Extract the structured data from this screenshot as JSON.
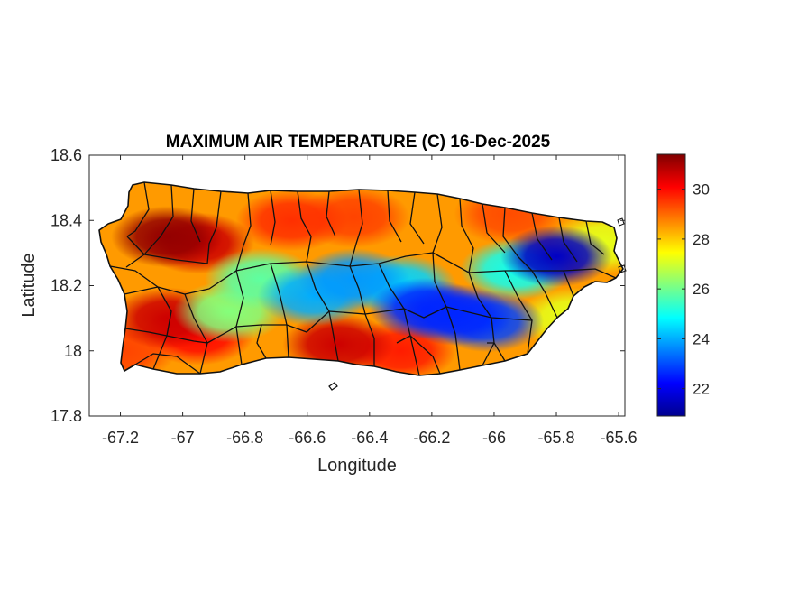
{
  "chart_data": {
    "type": "heatmap",
    "title": "MAXIMUM AIR TEMPERATURE (C) 16-Dec-2025",
    "xlabel": "Longitude",
    "ylabel": "Latitude",
    "xlim": [
      -67.3,
      -65.58
    ],
    "ylim": [
      17.8,
      18.6
    ],
    "x_ticks": [
      -67.2,
      -67,
      -66.8,
      -66.6,
      -66.4,
      -66.2,
      -66,
      -65.8,
      -65.6
    ],
    "x_tick_labels": [
      "-67.2",
      "-67",
      "-66.8",
      "-66.6",
      "-66.4",
      "-66.2",
      "-66",
      "-65.8",
      "-65.6"
    ],
    "y_ticks": [
      17.8,
      18,
      18.2,
      18.4,
      18.6
    ],
    "y_tick_labels": [
      "17.8",
      "18",
      "18.2",
      "18.4",
      "18.6"
    ],
    "colorbar": {
      "colormap": "jet",
      "range": [
        20.9,
        31.4
      ],
      "ticks": [
        22,
        24,
        26,
        28,
        30
      ],
      "tick_labels": [
        "22",
        "24",
        "26",
        "28",
        "30"
      ]
    },
    "grid": false,
    "region": "Puerto Rico",
    "base_value": 28.5,
    "features": [
      {
        "lon": -67.05,
        "lat": 18.35,
        "value": 31.2
      },
      {
        "lon": -66.95,
        "lat": 18.33,
        "value": 30.6
      },
      {
        "lon": -67.05,
        "lat": 18.1,
        "value": 30.6
      },
      {
        "lon": -66.95,
        "lat": 18.05,
        "value": 30.0
      },
      {
        "lon": -66.5,
        "lat": 18.02,
        "value": 30.6
      },
      {
        "lon": -66.3,
        "lat": 18.0,
        "value": 29.8
      },
      {
        "lon": -66.65,
        "lat": 18.4,
        "value": 29.6
      },
      {
        "lon": -66.45,
        "lat": 18.41,
        "value": 29.4
      },
      {
        "lon": -65.95,
        "lat": 18.42,
        "value": 29.3
      },
      {
        "lon": -67.2,
        "lat": 18.0,
        "value": 29.4
      },
      {
        "lon": -66.58,
        "lat": 18.17,
        "value": 24.0
      },
      {
        "lon": -66.45,
        "lat": 18.22,
        "value": 23.8
      },
      {
        "lon": -66.3,
        "lat": 18.2,
        "value": 24.4
      },
      {
        "lon": -66.22,
        "lat": 18.13,
        "value": 22.6
      },
      {
        "lon": -66.12,
        "lat": 18.11,
        "value": 22.6
      },
      {
        "lon": -66.02,
        "lat": 18.09,
        "value": 22.9
      },
      {
        "lon": -65.8,
        "lat": 18.29,
        "value": 21.6
      },
      {
        "lon": -65.93,
        "lat": 18.25,
        "value": 25.0
      },
      {
        "lon": -66.75,
        "lat": 18.22,
        "value": 25.8
      },
      {
        "lon": -66.85,
        "lat": 18.12,
        "value": 26.2
      },
      {
        "lon": -65.75,
        "lat": 18.1,
        "value": 27.2
      },
      {
        "lon": -65.65,
        "lat": 18.33,
        "value": 27.2
      }
    ]
  }
}
